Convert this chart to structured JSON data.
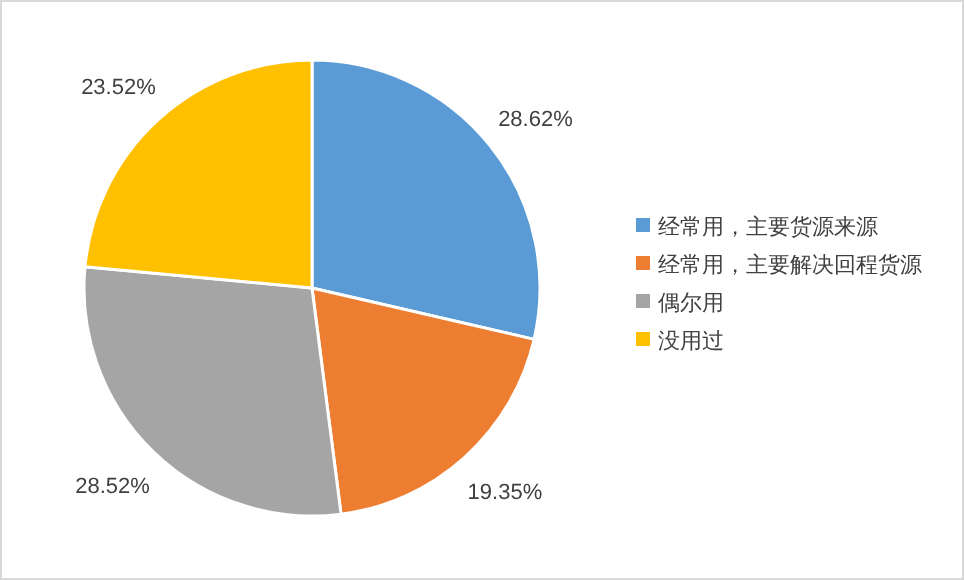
{
  "chart_data": {
    "type": "pie",
    "categories": [
      "经常用，主要货源来源",
      "经常用，主要解决回程货源",
      "偶尔用",
      "没用过"
    ],
    "values": [
      28.62,
      19.35,
      28.52,
      23.52
    ],
    "colors": [
      "#5b9bd5",
      "#ed7d31",
      "#a5a5a5",
      "#ffc000"
    ],
    "value_labels": [
      "28.62%",
      "19.35%",
      "28.52%",
      "23.52%"
    ],
    "legend": "right"
  }
}
